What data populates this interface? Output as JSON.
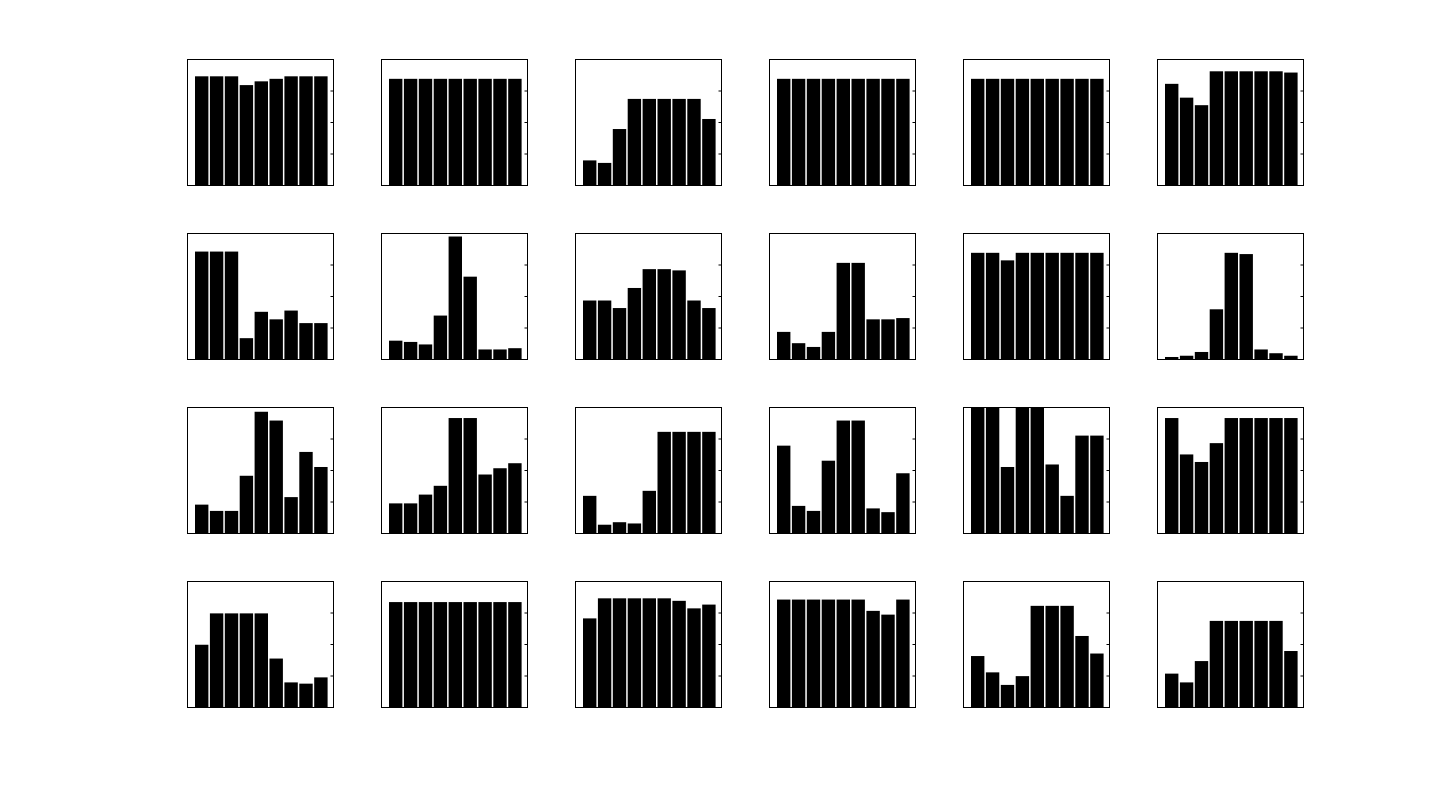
{
  "chart_data": [
    {
      "type": "bar",
      "values": [
        87,
        87,
        87,
        80,
        83,
        85,
        87,
        87,
        87
      ],
      "ylim": [
        0,
        100
      ],
      "grid": false
    },
    {
      "type": "bar",
      "values": [
        85,
        85,
        85,
        85,
        85,
        85,
        85,
        85,
        85
      ],
      "ylim": [
        0,
        100
      ],
      "grid": false
    },
    {
      "type": "bar",
      "values": [
        20,
        18,
        45,
        69,
        69,
        69,
        69,
        69,
        53
      ],
      "ylim": [
        0,
        100
      ],
      "grid": false
    },
    {
      "type": "bar",
      "values": [
        85,
        85,
        85,
        85,
        85,
        85,
        85,
        85,
        85
      ],
      "ylim": [
        0,
        100
      ],
      "grid": false
    },
    {
      "type": "bar",
      "values": [
        85,
        85,
        85,
        85,
        85,
        85,
        85,
        85,
        85
      ],
      "ylim": [
        0,
        100
      ],
      "grid": false
    },
    {
      "type": "bar",
      "values": [
        81,
        70,
        64,
        91,
        91,
        91,
        91,
        91,
        90
      ],
      "ylim": [
        0,
        100
      ],
      "grid": false
    },
    {
      "type": "bar",
      "values": [
        86,
        86,
        86,
        17,
        38,
        32,
        39,
        29,
        29
      ],
      "ylim": [
        0,
        100
      ],
      "grid": false
    },
    {
      "type": "bar",
      "values": [
        15,
        14,
        12,
        35,
        98,
        66,
        8,
        8,
        9
      ],
      "ylim": [
        0,
        100
      ],
      "grid": false
    },
    {
      "type": "bar",
      "values": [
        47,
        47,
        41,
        57,
        72,
        72,
        71,
        47,
        41
      ],
      "ylim": [
        0,
        100
      ],
      "grid": false
    },
    {
      "type": "bar",
      "values": [
        22,
        13,
        10,
        22,
        77,
        77,
        32,
        32,
        33
      ],
      "ylim": [
        0,
        100
      ],
      "grid": false
    },
    {
      "type": "bar",
      "values": [
        85,
        85,
        79,
        85,
        85,
        85,
        85,
        85,
        85
      ],
      "ylim": [
        0,
        100
      ],
      "grid": false
    },
    {
      "type": "bar",
      "values": [
        2,
        3,
        6,
        40,
        85,
        84,
        8,
        5,
        3
      ],
      "ylim": [
        0,
        100
      ],
      "grid": false
    },
    {
      "type": "bar",
      "values": [
        23,
        18,
        18,
        46,
        97,
        90,
        29,
        65,
        53
      ],
      "ylim": [
        0,
        100
      ],
      "grid": false
    },
    {
      "type": "bar",
      "values": [
        24,
        24,
        31,
        38,
        92,
        92,
        47,
        52,
        56
      ],
      "ylim": [
        0,
        100
      ],
      "grid": false
    },
    {
      "type": "bar",
      "values": [
        30,
        7,
        9,
        8,
        34,
        81,
        81,
        81,
        81
      ],
      "ylim": [
        0,
        100
      ],
      "grid": false
    },
    {
      "type": "bar",
      "values": [
        70,
        22,
        18,
        58,
        90,
        90,
        20,
        17,
        48
      ],
      "ylim": [
        0,
        100
      ],
      "grid": false
    },
    {
      "type": "bar",
      "values": [
        100,
        100,
        53,
        100,
        100,
        55,
        30,
        78,
        78
      ],
      "ylim": [
        0,
        100
      ],
      "grid": false
    },
    {
      "type": "bar",
      "values": [
        92,
        63,
        57,
        72,
        92,
        92,
        92,
        92,
        92
      ],
      "ylim": [
        0,
        100
      ],
      "grid": false
    },
    {
      "type": "bar",
      "values": [
        50,
        75,
        75,
        75,
        75,
        39,
        20,
        19,
        24
      ],
      "ylim": [
        0,
        100
      ],
      "grid": false
    },
    {
      "type": "bar",
      "values": [
        84,
        84,
        84,
        84,
        84,
        84,
        84,
        84,
        84
      ],
      "ylim": [
        0,
        100
      ],
      "grid": false
    },
    {
      "type": "bar",
      "values": [
        71,
        87,
        87,
        87,
        87,
        87,
        85,
        79,
        82
      ],
      "ylim": [
        0,
        100
      ],
      "grid": false
    },
    {
      "type": "bar",
      "values": [
        86,
        86,
        86,
        86,
        86,
        86,
        77,
        74,
        86
      ],
      "ylim": [
        0,
        100
      ],
      "grid": false
    },
    {
      "type": "bar",
      "values": [
        41,
        28,
        18,
        25,
        81,
        81,
        81,
        57,
        43
      ],
      "ylim": [
        0,
        100
      ],
      "grid": false
    },
    {
      "type": "bar",
      "values": [
        27,
        20,
        37,
        69,
        69,
        69,
        69,
        69,
        45
      ],
      "ylim": [
        0,
        100
      ],
      "grid": false
    }
  ],
  "colors": {
    "bar_fill": "#000000",
    "axes_stroke": "#000000",
    "background": "#ffffff"
  }
}
